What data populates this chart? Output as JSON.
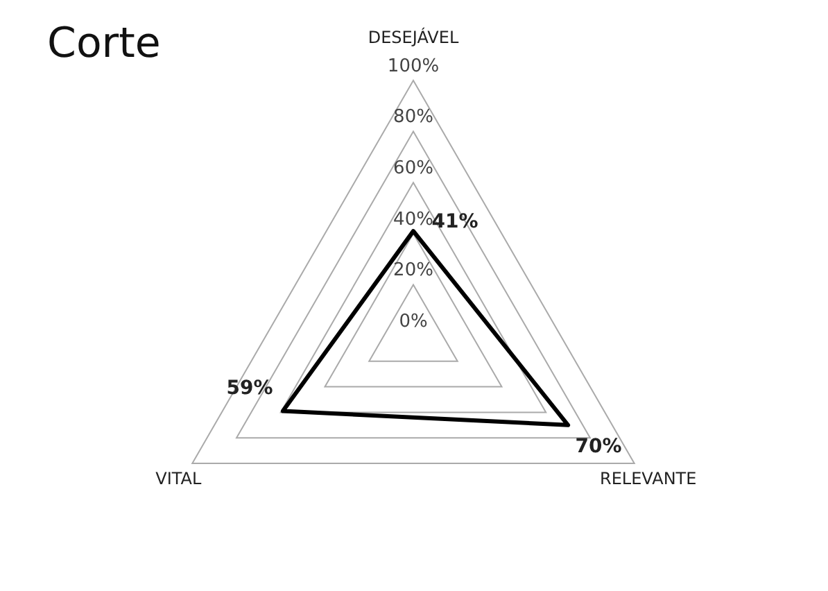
{
  "chart_data": {
    "type": "radar",
    "title": "Corte",
    "categories": [
      "DESEJÁVEL",
      "RELEVANTE",
      "VITAL"
    ],
    "series": [
      {
        "color": "#000000",
        "values": [
          41,
          70,
          59
        ],
        "value_labels": [
          "41%",
          "70%",
          "59%"
        ]
      }
    ],
    "ylim": [
      0,
      100
    ],
    "yticks": [
      {
        "value": 0,
        "label": "0%"
      },
      {
        "value": 20,
        "label": "20%"
      },
      {
        "value": 40,
        "label": "40%"
      },
      {
        "value": 60,
        "label": "60%"
      },
      {
        "value": 80,
        "label": "80%"
      },
      {
        "value": 100,
        "label": "100%"
      }
    ],
    "grid": true,
    "legend": false,
    "marker": "none",
    "line_style": "solid"
  }
}
